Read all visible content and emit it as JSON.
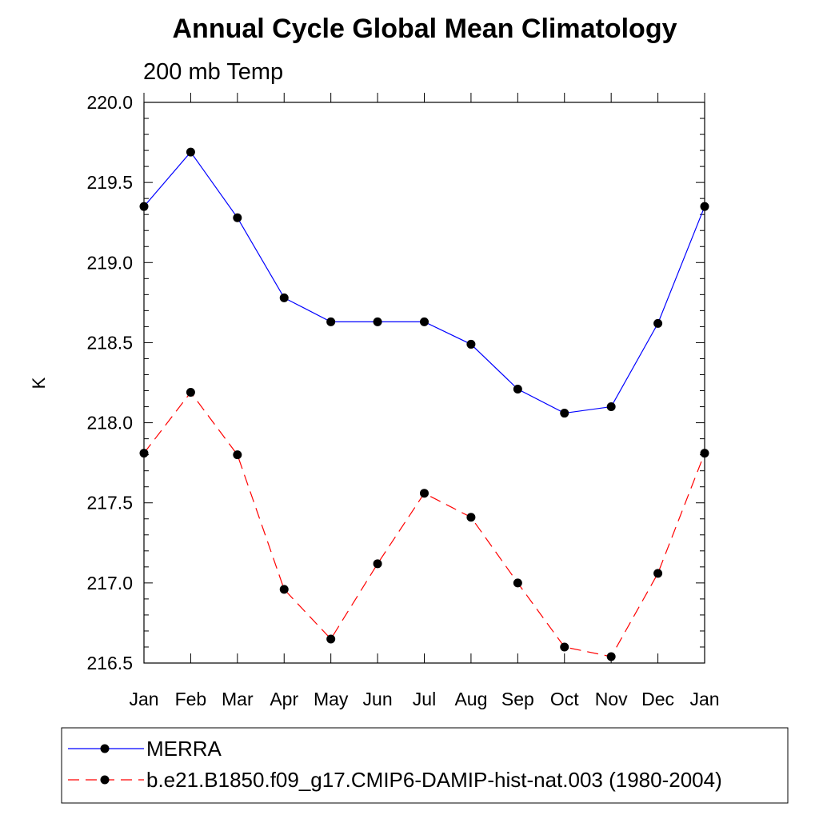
{
  "chart_data": {
    "type": "line",
    "title": "Annual Cycle Global Mean Climatology",
    "subtitle": "200 mb Temp",
    "ylabel": "K",
    "xlabel": "",
    "categories": [
      "Jan",
      "Feb",
      "Mar",
      "Apr",
      "May",
      "Jun",
      "Jul",
      "Aug",
      "Sep",
      "Oct",
      "Nov",
      "Dec",
      "Jan"
    ],
    "ylim": [
      216.5,
      220.0
    ],
    "ytick_labels": [
      "216.5",
      "217.0",
      "217.5",
      "218.0",
      "218.5",
      "219.0",
      "219.5",
      "220.0"
    ],
    "grid": false,
    "legend_position": "bottom",
    "series": [
      {
        "name": "MERRA",
        "color": "#0000ff",
        "line_style": "solid",
        "marker": "filled-circle",
        "values": [
          219.35,
          219.69,
          219.28,
          218.78,
          218.63,
          218.63,
          218.63,
          218.49,
          218.21,
          218.06,
          218.1,
          218.62,
          219.35
        ]
      },
      {
        "name": "b.e21.B1850.f09_g17.CMIP6-DAMIP-hist-nat.003 (1980-2004)",
        "color": "#ff0000",
        "line_style": "dashed",
        "marker": "filled-circle",
        "values": [
          217.81,
          218.19,
          217.8,
          216.96,
          216.65,
          217.12,
          217.56,
          217.41,
          217.0,
          216.6,
          216.54,
          217.06,
          217.81
        ]
      }
    ]
  }
}
